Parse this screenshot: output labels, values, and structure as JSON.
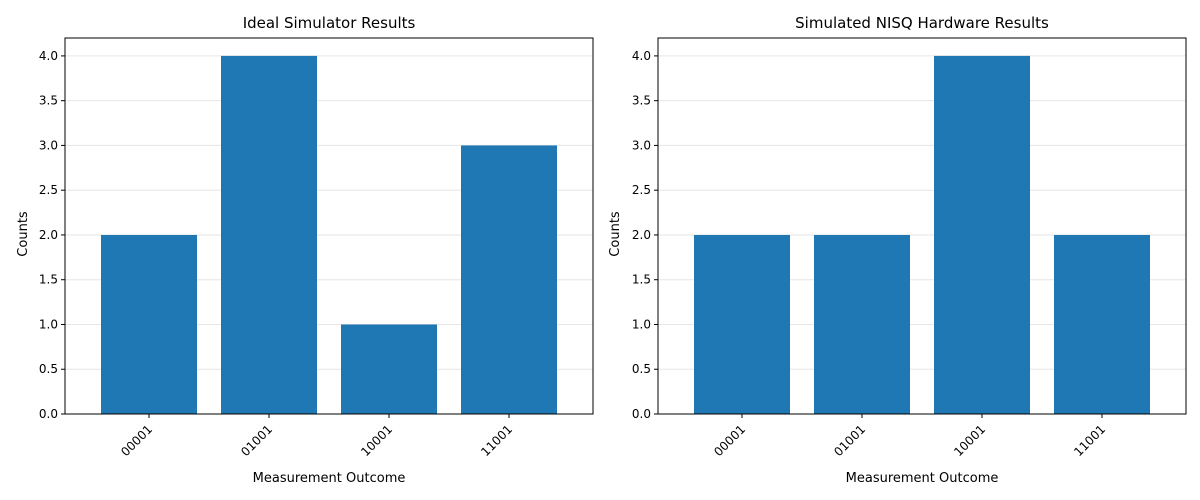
{
  "chart_data": [
    {
      "type": "bar",
      "title": "Ideal Simulator Results",
      "xlabel": "Measurement Outcome",
      "ylabel": "Counts",
      "categories": [
        "00001",
        "01001",
        "10001",
        "11001"
      ],
      "values": [
        2,
        4,
        1,
        3
      ],
      "ylim": [
        0,
        4.2
      ],
      "yticks": [
        "0.0",
        "0.5",
        "1.0",
        "1.5",
        "2.0",
        "2.5",
        "3.0",
        "3.5",
        "4.0"
      ],
      "ytick_values": [
        0,
        0.5,
        1,
        1.5,
        2,
        2.5,
        3,
        3.5,
        4
      ],
      "bar_color": "#1f77b4",
      "grid": "y",
      "xtick_rotation": 45
    },
    {
      "type": "bar",
      "title": "Simulated NISQ Hardware Results",
      "xlabel": "Measurement Outcome",
      "ylabel": "Counts",
      "categories": [
        "00001",
        "01001",
        "10001",
        "11001"
      ],
      "values": [
        2,
        2,
        4,
        2
      ],
      "ylim": [
        0,
        4.2
      ],
      "yticks": [
        "0.0",
        "0.5",
        "1.0",
        "1.5",
        "2.0",
        "2.5",
        "3.0",
        "3.5",
        "4.0"
      ],
      "ytick_values": [
        0,
        0.5,
        1,
        1.5,
        2,
        2.5,
        3,
        3.5,
        4
      ],
      "bar_color": "#1f77b4",
      "grid": "y",
      "xtick_rotation": 45
    }
  ]
}
